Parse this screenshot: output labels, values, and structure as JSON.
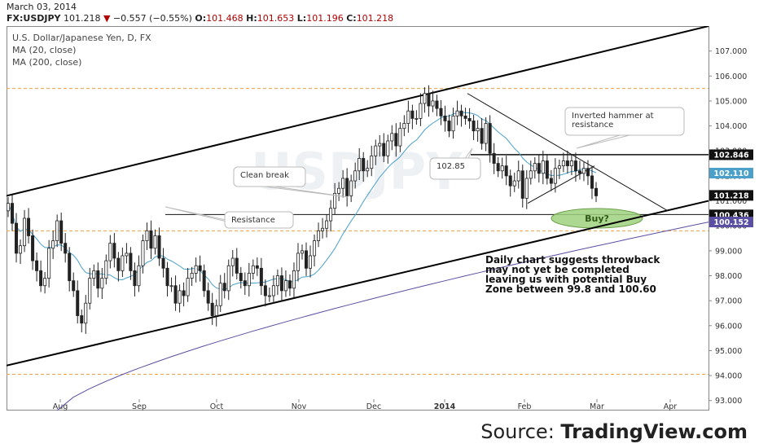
{
  "header": {
    "date": "March 03, 2014",
    "symbol": "FX:USDJPY",
    "last": "101.218",
    "change": "−0.557 (−0.55%)",
    "o_label": "O:",
    "o": "101.468",
    "h_label": "H:",
    "h": "101.653",
    "l_label": "L:",
    "l": "101.196",
    "c_label": "C:",
    "c": "101.218"
  },
  "legend": {
    "title": "U.S. Dollar/Japanese Yen, D, FX",
    "ma20": "MA (20, close)",
    "ma200": "MA (200, close)"
  },
  "watermark": "USDJPY",
  "source": {
    "prefix": "Source:",
    "brand": "TradingView.com"
  },
  "colors": {
    "bull": "#ffffff",
    "bear": "#222222",
    "ma20": "#4aa0c8",
    "ma200": "#5a4fa2",
    "dashed": "#f0a040",
    "buy_zone": "#9fd17f",
    "price_red": "#b00000"
  },
  "chart_data": {
    "type": "candlestick",
    "title": "U.S. Dollar/Japanese Yen, D, FX",
    "ylim": [
      92.6,
      108.0
    ],
    "yticks": [
      "93.000",
      "94.000",
      "95.000",
      "96.000",
      "97.000",
      "98.000",
      "99.000",
      "100.000",
      "101.000",
      "102.000",
      "103.000",
      "104.000",
      "105.000",
      "106.000",
      "107.000"
    ],
    "xticks": [
      "Aug",
      "Sep",
      "Oct",
      "Nov",
      "Dec",
      "2014",
      "Feb",
      "Mar",
      "Apr"
    ],
    "price_labels": [
      {
        "value": 102.846,
        "label": "102.846",
        "style": "dark"
      },
      {
        "value": 102.11,
        "label": "102.110",
        "style": "ma20"
      },
      {
        "value": 101.218,
        "label": "101.218",
        "style": "dark"
      },
      {
        "value": 100.436,
        "label": "100.436",
        "style": "dark"
      },
      {
        "value": 100.152,
        "label": "100.152",
        "style": "ma200"
      }
    ],
    "horizontal_lines": [
      {
        "value": 105.5,
        "style": "dashed"
      },
      {
        "value": 99.8,
        "style": "dashed"
      },
      {
        "value": 94.05,
        "style": "dashed"
      },
      {
        "value": 100.45,
        "style": "solid"
      },
      {
        "value": 102.85,
        "style": "solid"
      }
    ],
    "annotations": [
      {
        "text": "Clean break"
      },
      {
        "text": "Resistance"
      },
      {
        "text": "102.85"
      },
      {
        "text": "Inverted hammer at"
      },
      {
        "text": "resistance"
      },
      {
        "text": "Buy?"
      }
    ],
    "note": "Daily chart suggests throwback may not yet be completed leaving us with potential Buy Zone between 99.8 and 100.60",
    "series": [
      {
        "values": [
          100.9,
          100.1,
          98.9,
          99.2,
          100.3,
          99.6,
          98.6,
          98.2,
          97.6,
          97.9,
          99.1,
          99.4,
          100.2,
          99.3,
          98.9,
          97.8,
          97.4,
          96.4,
          96.1,
          96.9,
          97.9,
          98.2,
          97.5,
          97.9,
          98.6,
          99.3,
          98.7,
          98.2,
          98.8,
          98.9,
          98.2,
          97.6,
          98.4,
          99.4,
          99.8,
          99.1,
          99.6,
          98.7,
          98.3,
          97.6,
          97.6,
          96.9,
          97.4,
          97.2,
          97.9,
          98.1,
          98.4,
          98.2,
          97.4,
          96.9,
          96.4,
          96.8,
          97.7,
          97.4,
          98.4,
          98.7,
          98.1,
          97.8,
          97.6,
          98.1,
          98.4,
          98.3,
          97.6,
          97.2,
          97.2,
          97.6,
          98.0,
          97.4,
          97.8,
          97.5,
          98.2,
          98.9,
          99.0,
          98.3,
          98.8,
          99.4,
          99.8,
          99.9,
          100.2,
          100.7,
          101.3,
          101.5,
          101.9,
          101.2,
          101.8,
          102.2,
          102.7,
          102.2,
          102.3,
          102.8,
          103.2,
          103.3,
          102.8,
          103.4,
          103.7,
          103.2,
          103.9,
          104.1,
          104.6,
          104.3,
          104.3,
          104.9,
          105.3,
          104.8,
          105.0,
          104.7,
          104.4,
          104.2,
          103.8,
          104.4,
          104.6,
          104.4,
          104.3,
          104.2,
          103.8,
          103.9,
          103.3,
          104.1,
          102.9,
          102.5,
          102.2,
          102.4,
          102.0,
          101.6,
          101.8,
          102.2,
          101.1,
          101.9,
          102.2,
          102.5,
          102.1,
          102.6,
          101.9,
          101.7,
          102.3,
          102.4,
          102.6,
          102.4,
          102.6,
          102.2,
          102.1,
          102.3,
          102.0,
          101.5,
          101.2
        ],
        "name": ""
      }
    ]
  }
}
